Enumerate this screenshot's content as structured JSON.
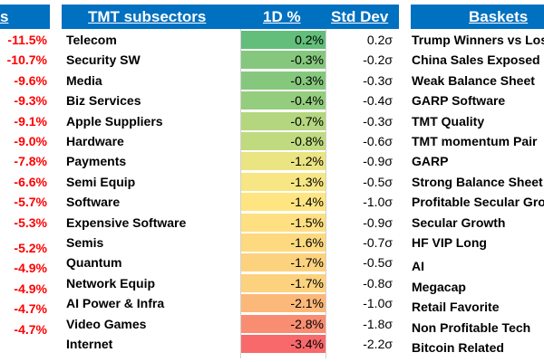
{
  "left": {
    "header": "s",
    "values": [
      "-11.5%",
      "-10.7%",
      "-9.6%",
      "-9.3%",
      "-9.1%",
      "-9.0%",
      "-7.8%",
      "-6.6%",
      "-5.7%",
      "-5.3%",
      "-5.2%",
      "-4.9%",
      "-4.9%",
      "-4.7%",
      "-4.7%"
    ]
  },
  "tmt": {
    "header_name": "TMT subsectors",
    "header_1d": "1D %",
    "header_sd": "Std Dev",
    "rows": [
      {
        "name": "Telecom",
        "d1": "0.2%",
        "sd": "0.2σ",
        "color": "#63be7b"
      },
      {
        "name": "Security SW",
        "d1": "-0.3%",
        "sd": "-0.2σ",
        "color": "#85c87d"
      },
      {
        "name": "Media",
        "d1": "-0.3%",
        "sd": "-0.3σ",
        "color": "#85c87d"
      },
      {
        "name": "Biz Services",
        "d1": "-0.4%",
        "sd": "-0.4σ",
        "color": "#94cd7e"
      },
      {
        "name": "Apple Suppliers",
        "d1": "-0.7%",
        "sd": "-0.3σ",
        "color": "#b4d67f"
      },
      {
        "name": "Hardware",
        "d1": "-0.8%",
        "sd": "-0.6σ",
        "color": "#c0da80"
      },
      {
        "name": "Payments",
        "d1": "-1.2%",
        "sd": "-0.9σ",
        "color": "#ebe482"
      },
      {
        "name": "Semi Equip",
        "d1": "-1.3%",
        "sd": "-0.5σ",
        "color": "#f7e683"
      },
      {
        "name": "Software",
        "d1": "-1.4%",
        "sd": "-1.0σ",
        "color": "#fee582"
      },
      {
        "name": "Expensive Software",
        "d1": "-1.5%",
        "sd": "-0.9σ",
        "color": "#fedf81"
      },
      {
        "name": "Semis",
        "d1": "-1.6%",
        "sd": "-0.7σ",
        "color": "#fdd97f"
      },
      {
        "name": "Quantum",
        "d1": "-1.7%",
        "sd": "-0.5σ",
        "color": "#fdd27e"
      },
      {
        "name": "Network Equip",
        "d1": "-1.7%",
        "sd": "-0.8σ",
        "color": "#fdd27e"
      },
      {
        "name": "AI Power & Infra",
        "d1": "-2.1%",
        "sd": "-1.0σ",
        "color": "#fcb879"
      },
      {
        "name": "Video Games",
        "d1": "-2.8%",
        "sd": "-1.8σ",
        "color": "#f98d72"
      },
      {
        "name": "Internet",
        "d1": "-3.4%",
        "sd": "-2.2σ",
        "color": "#f8696b"
      }
    ]
  },
  "baskets": {
    "header": "Baskets",
    "rows": [
      "Trump Winners vs Losers",
      "China Sales Exposed",
      "Weak Balance Sheet",
      "GARP Software",
      "TMT Quality",
      "TMT momentum Pair",
      "GARP",
      "Strong Balance Sheet",
      "Profitable Secular Growth",
      "Secular Growth",
      "HF VIP Long",
      "AI",
      "Megacap",
      "Retail Favorite",
      "Non Profitable Tech",
      "Bitcoin Related"
    ]
  }
}
